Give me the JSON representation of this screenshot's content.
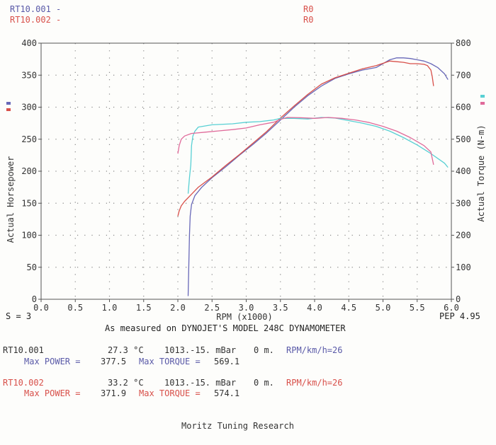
{
  "header": {
    "run1_name": "RT10.001 -",
    "run2_name": "RT10.002 -",
    "run1_code": "R0",
    "run2_code": "R0"
  },
  "colors": {
    "run1_power": "#6868b8",
    "run2_power": "#d8504a",
    "run1_torque": "#58d0d4",
    "run2_torque": "#e06a9a",
    "grid": "#888888",
    "axis": "#555555"
  },
  "footer": {
    "smoothing": "S = 3",
    "pep": "PEP 4.95",
    "measured": "As measured on DYNOJET'S MODEL 248C DYNAMOMETER",
    "run1": {
      "label": "RT10.001",
      "temp": "27.3 °C",
      "pressure": "1013.-15. mBar",
      "altitude": "0 m.",
      "rpm_kmh": "RPM/km/h=26",
      "max_power_label": "Max POWER =",
      "max_power": "377.5",
      "max_torque_label": "Max TORQUE =",
      "max_torque": "569.1"
    },
    "run2": {
      "label": "RT10.002",
      "temp": "33.2 °C",
      "pressure": "1013.-15. mBar",
      "altitude": "0 m.",
      "rpm_kmh": "RPM/km/h=26",
      "max_power_label": "Max POWER =",
      "max_power": "371.9",
      "max_torque_label": "Max TORQUE =",
      "max_torque": "574.1"
    },
    "company": "Moritz Tuning Research"
  },
  "chart_data": {
    "type": "line",
    "xlabel": "RPM (x1000)",
    "ylabel": "Actual Horsepower",
    "y2label": "Actual Torque (N-m)",
    "xlim": [
      0,
      6.0
    ],
    "ylim": [
      0,
      400
    ],
    "y2lim": [
      0,
      800
    ],
    "grid": true,
    "x_ticks": [
      "0.0",
      "0.5",
      "1.0",
      "1.5",
      "2.0",
      "2.5",
      "3.0",
      "3.5",
      "4.0",
      "4.5",
      "5.0",
      "5.5",
      "6.0"
    ],
    "y_ticks": [
      "0",
      "50",
      "100",
      "150",
      "200",
      "250",
      "300",
      "350",
      "400"
    ],
    "y2_ticks": [
      "0",
      "100",
      "200",
      "300",
      "400",
      "500",
      "600",
      "700",
      "800"
    ],
    "series": [
      {
        "axis": "left",
        "x": [
          2.15,
          2.16,
          2.17,
          2.18,
          2.2,
          2.25,
          2.35,
          2.5,
          2.7,
          2.9,
          3.1,
          3.3,
          3.5,
          3.7,
          3.9,
          4.1,
          4.3,
          4.5,
          4.7,
          4.9,
          5.1,
          5.2,
          5.3,
          5.4,
          5.5,
          5.6,
          5.7,
          5.8,
          5.9,
          5.95
        ],
        "y": [
          5,
          50,
          100,
          130,
          148,
          162,
          175,
          190,
          207,
          225,
          242,
          260,
          280,
          300,
          318,
          333,
          345,
          352,
          358,
          362,
          374,
          377,
          377,
          376,
          374,
          372,
          368,
          362,
          352,
          343
        ]
      },
      {
        "axis": "left",
        "x": [
          2.0,
          2.02,
          2.05,
          2.1,
          2.2,
          2.3,
          2.5,
          2.7,
          2.9,
          3.1,
          3.3,
          3.5,
          3.7,
          3.9,
          4.1,
          4.3,
          4.5,
          4.7,
          4.9,
          5.1,
          5.2,
          5.3,
          5.4,
          5.5,
          5.6,
          5.65,
          5.7,
          5.72,
          5.74
        ],
        "y": [
          130,
          138,
          146,
          153,
          164,
          175,
          191,
          209,
          226,
          244,
          262,
          283,
          302,
          320,
          336,
          346,
          353,
          360,
          365,
          372,
          371,
          370,
          368,
          368,
          367,
          365,
          358,
          348,
          333
        ]
      },
      {
        "axis": "right",
        "x": [
          2.15,
          2.17,
          2.19,
          2.2,
          2.22,
          2.25,
          2.3,
          2.5,
          2.8,
          3.0,
          3.2,
          3.4,
          3.5,
          3.7,
          3.9,
          4.1,
          4.3,
          4.5,
          4.7,
          4.9,
          5.1,
          5.3,
          5.5,
          5.7,
          5.9,
          5.95
        ],
        "y": [
          330,
          380,
          420,
          480,
          510,
          525,
          538,
          545,
          548,
          553,
          555,
          560,
          565,
          565,
          563,
          568,
          566,
          558,
          550,
          540,
          525,
          505,
          482,
          455,
          425,
          412
        ]
      },
      {
        "axis": "right",
        "x": [
          2.0,
          2.02,
          2.05,
          2.1,
          2.2,
          2.4,
          2.6,
          2.8,
          3.0,
          3.2,
          3.4,
          3.5,
          3.6,
          3.8,
          4.0,
          4.2,
          4.4,
          4.6,
          4.8,
          5.0,
          5.2,
          5.4,
          5.6,
          5.7,
          5.72,
          5.74
        ],
        "y": [
          455,
          480,
          500,
          510,
          518,
          522,
          526,
          530,
          535,
          545,
          553,
          562,
          568,
          567,
          565,
          568,
          565,
          560,
          552,
          540,
          525,
          505,
          480,
          460,
          440,
          420
        ]
      }
    ]
  }
}
